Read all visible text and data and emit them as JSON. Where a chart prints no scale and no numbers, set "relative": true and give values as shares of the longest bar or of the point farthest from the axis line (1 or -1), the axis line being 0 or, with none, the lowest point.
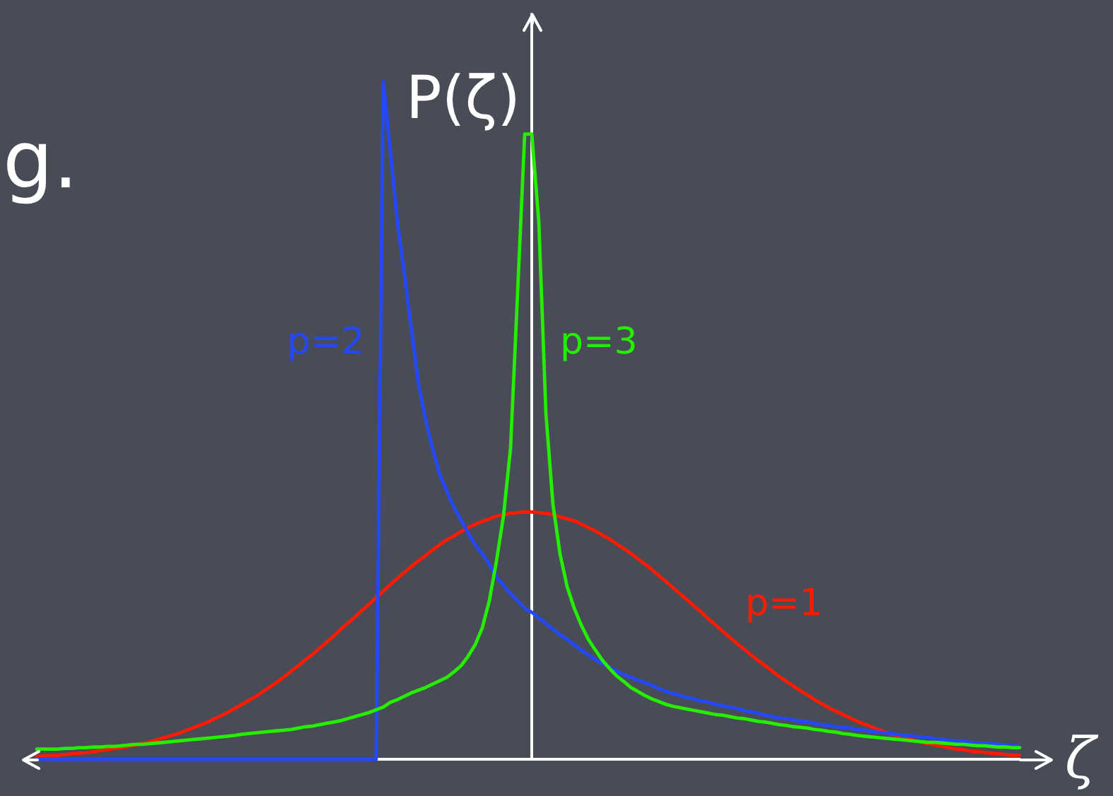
{
  "chart_data": {
    "type": "line",
    "relative": true,
    "xlabel": "ζ",
    "ylabel": "P(ζ)",
    "annotations": [
      "g."
    ],
    "categories": [
      null,
      null,
      null,
      null,
      null,
      null,
      null,
      null,
      null,
      null,
      null,
      null,
      null,
      null,
      null,
      null,
      null,
      null,
      null,
      null,
      null,
      null,
      null,
      null,
      null,
      null,
      null,
      null,
      null,
      null,
      null,
      null,
      null,
      null,
      null,
      null,
      null,
      null,
      null,
      null,
      null,
      null,
      null,
      null,
      null,
      null,
      null,
      null,
      null,
      null,
      null,
      null,
      null,
      null,
      null,
      null,
      null,
      null,
      null,
      null,
      null,
      null,
      null,
      null,
      null,
      null,
      null,
      null,
      null,
      null,
      null,
      null,
      null,
      null,
      null,
      null,
      null,
      null,
      null,
      null,
      null,
      null,
      null,
      null,
      null,
      null,
      null,
      null,
      null,
      null,
      null,
      null,
      null,
      null,
      null,
      null,
      null,
      null,
      null,
      null,
      null,
      null,
      null,
      null,
      null,
      null,
      null,
      null,
      null,
      null,
      null,
      null,
      null,
      null,
      null,
      null,
      null,
      null,
      null,
      null,
      null,
      null,
      null,
      null,
      null,
      null,
      null,
      null,
      null,
      null,
      null,
      null,
      null,
      null,
      null,
      null,
      null,
      null,
      null,
      null
    ],
    "series": [
      {
        "name": "p=1",
        "color": "#ff1a00",
        "values": [
          0.004,
          0.005,
          0.005,
          0.006,
          0.007,
          0.008,
          0.009,
          0.01,
          0.011,
          0.013,
          0.014,
          0.016,
          0.017,
          0.019,
          0.021,
          0.024,
          0.026,
          0.029,
          0.032,
          0.035,
          0.038,
          0.042,
          0.046,
          0.05,
          0.054,
          0.059,
          0.064,
          0.069,
          0.075,
          0.081,
          0.087,
          0.093,
          0.1,
          0.107,
          0.114,
          0.122,
          0.13,
          0.138,
          0.147,
          0.155,
          0.164,
          0.173,
          0.182,
          0.192,
          0.201,
          0.21,
          0.22,
          0.229,
          0.239,
          0.248,
          0.258,
          0.267,
          0.276,
          0.285,
          0.293,
          0.301,
          0.309,
          0.317,
          0.324,
          0.33,
          0.336,
          0.342,
          0.347,
          0.351,
          0.355,
          0.359,
          0.361,
          0.363,
          0.364,
          0.365,
          0.365,
          0.364,
          0.363,
          0.361,
          0.358,
          0.355,
          0.352,
          0.347,
          0.342,
          0.337,
          0.331,
          0.325,
          0.318,
          0.311,
          0.304,
          0.296,
          0.288,
          0.28,
          0.271,
          0.262,
          0.253,
          0.244,
          0.235,
          0.226,
          0.217,
          0.207,
          0.198,
          0.189,
          0.18,
          0.171,
          0.163,
          0.154,
          0.146,
          0.138,
          0.13,
          0.122,
          0.115,
          0.108,
          0.101,
          0.095,
          0.088,
          0.082,
          0.076,
          0.071,
          0.066,
          0.061,
          0.056,
          0.052,
          0.048,
          0.044,
          0.04,
          0.037,
          0.034,
          0.031,
          0.028,
          0.025,
          0.023,
          0.021,
          0.019,
          0.017,
          0.015,
          0.014,
          0.012,
          0.011,
          0.01,
          0.009,
          0.008,
          0.007,
          0.006,
          0.006
        ]
      },
      {
        "name": "p=2",
        "color": "#2448ff",
        "values": [
          0,
          0,
          0,
          0,
          0,
          0,
          0,
          0,
          0,
          0,
          0,
          0,
          0,
          0,
          0,
          0,
          0,
          0,
          0,
          0,
          0,
          0,
          0,
          0,
          0,
          0,
          0,
          0,
          0,
          0,
          0,
          0,
          0,
          0,
          0,
          0,
          0,
          0,
          0,
          0,
          0,
          0,
          0,
          0,
          0,
          0,
          0,
          0,
          0,
          1,
          0.898,
          0.793,
          0.716,
          0.633,
          0.553,
          0.501,
          0.457,
          0.42,
          0.395,
          0.372,
          0.353,
          0.334,
          0.317,
          0.303,
          0.288,
          0.269,
          0.257,
          0.244,
          0.234,
          0.223,
          0.217,
          0.209,
          0.2,
          0.192,
          0.184,
          0.177,
          0.169,
          0.161,
          0.154,
          0.147,
          0.141,
          0.136,
          0.13,
          0.125,
          0.121,
          0.117,
          0.113,
          0.109,
          0.104,
          0.1,
          0.097,
          0.094,
          0.091,
          0.089,
          0.086,
          0.084,
          0.081,
          0.079,
          0.077,
          0.075,
          0.072,
          0.07,
          0.068,
          0.065,
          0.063,
          0.061,
          0.06,
          0.058,
          0.056,
          0.055,
          0.053,
          0.051,
          0.05,
          0.048,
          0.047,
          0.046,
          0.044,
          0.043,
          0.041,
          0.04,
          0.039,
          0.038,
          0.036,
          0.035,
          0.034,
          0.033,
          0.032,
          0.03,
          0.029,
          0.028,
          0.027,
          0.026,
          0.025,
          0.024,
          0.023,
          0.023,
          0.022,
          0.021,
          0.02,
          0.019
        ]
      },
      {
        "name": "p=3",
        "color": "#26ee00",
        "values": [
          0.015,
          0.015,
          0.015,
          0.015,
          0.016,
          0.016,
          0.017,
          0.017,
          0.018,
          0.018,
          0.019,
          0.019,
          0.02,
          0.021,
          0.022,
          0.022,
          0.023,
          0.024,
          0.025,
          0.026,
          0.027,
          0.028,
          0.029,
          0.03,
          0.031,
          0.032,
          0.033,
          0.034,
          0.035,
          0.037,
          0.038,
          0.039,
          0.04,
          0.041,
          0.042,
          0.043,
          0.044,
          0.046,
          0.048,
          0.049,
          0.051,
          0.053,
          0.055,
          0.057,
          0.06,
          0.063,
          0.066,
          0.069,
          0.073,
          0.077,
          0.084,
          0.088,
          0.093,
          0.098,
          0.102,
          0.106,
          0.111,
          0.116,
          0.121,
          0.129,
          0.138,
          0.152,
          0.169,
          0.194,
          0.234,
          0.292,
          0.359,
          0.459,
          0.689,
          0.923,
          0.923,
          0.793,
          0.511,
          0.376,
          0.303,
          0.255,
          0.223,
          0.198,
          0.177,
          0.161,
          0.146,
          0.134,
          0.123,
          0.115,
          0.106,
          0.1,
          0.094,
          0.089,
          0.085,
          0.081,
          0.078,
          0.076,
          0.074,
          0.072,
          0.07,
          0.068,
          0.066,
          0.065,
          0.063,
          0.061,
          0.06,
          0.058,
          0.056,
          0.055,
          0.053,
          0.051,
          0.05,
          0.048,
          0.047,
          0.046,
          0.044,
          0.043,
          0.041,
          0.04,
          0.038,
          0.037,
          0.035,
          0.034,
          0.033,
          0.032,
          0.031,
          0.03,
          0.029,
          0.028,
          0.027,
          0.026,
          0.025,
          0.025,
          0.024,
          0.023,
          0.022,
          0.022,
          0.021,
          0.02,
          0.02,
          0.019,
          0.018,
          0.018,
          0.017,
          0.017
        ]
      }
    ]
  }
}
